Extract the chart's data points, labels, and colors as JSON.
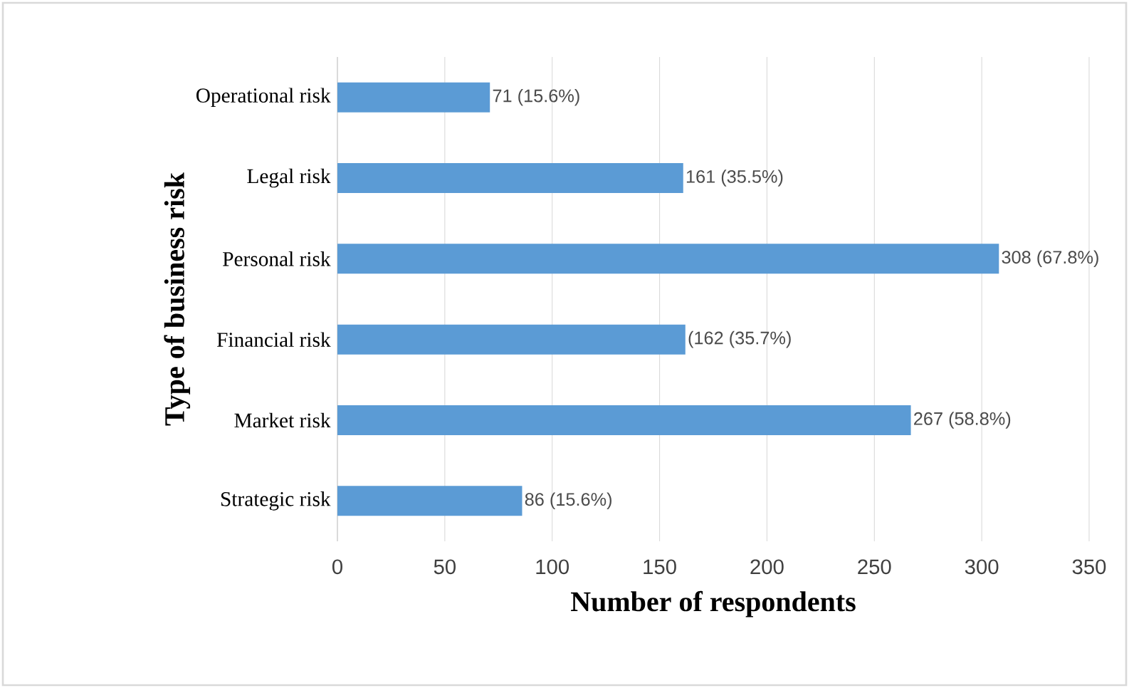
{
  "chart_data": {
    "type": "bar",
    "orientation": "horizontal",
    "xlabel": "Number of respondents",
    "ylabel": "Type of business risk",
    "categories": [
      "Operational risk",
      "Legal risk",
      "Personal risk",
      "Financial risk",
      "Market risk",
      "Strategic risk"
    ],
    "values": [
      71,
      161,
      308,
      162,
      267,
      86
    ],
    "value_labels": [
      "71 (15.6%)",
      "161 (35.5%)",
      "308 (67.8%)",
      "(162 (35.7%)",
      "267 (58.8%)",
      "86 (15.6%)"
    ],
    "color": "#5b9bd5",
    "xlim": [
      0,
      350
    ],
    "xticks": [
      0,
      50,
      100,
      150,
      200,
      250,
      300,
      350
    ],
    "grid": "x"
  }
}
